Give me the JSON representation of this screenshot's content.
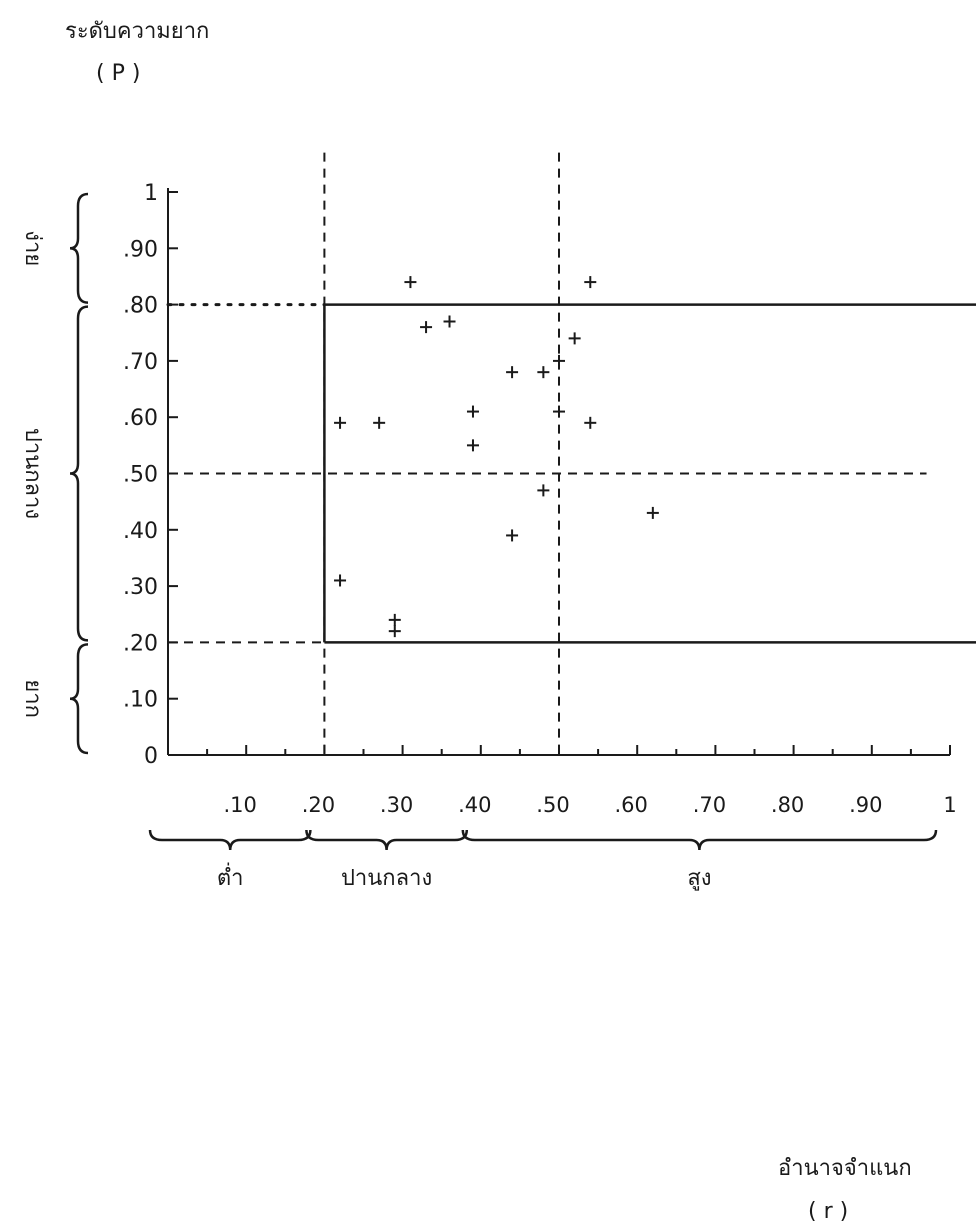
{
  "chart_data": {
    "type": "scatter",
    "title": "",
    "ylabel": "ระดับความยาก",
    "ylabel_symbol": "( P )",
    "xlabel": "อำนาจจำแนก",
    "xlabel_symbol": "( r )",
    "xlim": [
      0,
      1
    ],
    "ylim": [
      0,
      1
    ],
    "grid": false,
    "y_ticks": [
      "0",
      ".10",
      ".20",
      ".30",
      ".40",
      ".50",
      ".60",
      ".70",
      ".80",
      ".90",
      "1"
    ],
    "y_tick_values": [
      0,
      0.1,
      0.2,
      0.3,
      0.4,
      0.5,
      0.6,
      0.7,
      0.8,
      0.9,
      1
    ],
    "x_ticks": [
      ".10",
      ".20",
      ".30",
      ".40",
      ".50",
      ".60",
      ".70",
      ".80",
      ".90",
      "1"
    ],
    "x_tick_values": [
      0.1,
      0.2,
      0.3,
      0.4,
      0.5,
      0.6,
      0.7,
      0.8,
      0.9,
      1
    ],
    "y_bands": [
      {
        "label": "ง่าย",
        "range": [
          0.8,
          1.0
        ]
      },
      {
        "label": "ปานกลาง",
        "range": [
          0.2,
          0.8
        ]
      },
      {
        "label": "ยาก",
        "range": [
          0,
          0.2
        ]
      }
    ],
    "x_bands": [
      {
        "label": "ต่ำ",
        "range": [
          0,
          0.2
        ]
      },
      {
        "label": "ปานกลาง",
        "range": [
          0.2,
          0.4
        ]
      },
      {
        "label": "สูง",
        "range": [
          0.4,
          1.0
        ]
      }
    ],
    "reference_lines": [
      {
        "axis": "y",
        "value": 0.8,
        "style": "solid",
        "from_x": 0.2
      },
      {
        "axis": "y",
        "value": 0.2,
        "style": "solid",
        "from_x": 0.2
      },
      {
        "axis": "x",
        "value": 0.2,
        "style": "solid",
        "y_range": [
          0.2,
          0.8
        ]
      },
      {
        "axis": "x",
        "value": 0.2,
        "style": "dashed"
      },
      {
        "axis": "x",
        "value": 0.5,
        "style": "dashed"
      },
      {
        "axis": "y",
        "value": 0.5,
        "style": "dashed"
      }
    ],
    "marker": "+",
    "points": [
      {
        "x": 0.31,
        "y": 0.84
      },
      {
        "x": 0.54,
        "y": 0.84
      },
      {
        "x": 0.36,
        "y": 0.77
      },
      {
        "x": 0.33,
        "y": 0.76
      },
      {
        "x": 0.52,
        "y": 0.74
      },
      {
        "x": 0.44,
        "y": 0.68
      },
      {
        "x": 0.48,
        "y": 0.68
      },
      {
        "x": 0.5,
        "y": 0.7
      },
      {
        "x": 0.22,
        "y": 0.59
      },
      {
        "x": 0.27,
        "y": 0.59
      },
      {
        "x": 0.54,
        "y": 0.59
      },
      {
        "x": 0.39,
        "y": 0.61
      },
      {
        "x": 0.5,
        "y": 0.61
      },
      {
        "x": 0.39,
        "y": 0.55
      },
      {
        "x": 0.48,
        "y": 0.47
      },
      {
        "x": 0.62,
        "y": 0.43
      },
      {
        "x": 0.44,
        "y": 0.39
      },
      {
        "x": 0.22,
        "y": 0.31
      },
      {
        "x": 0.29,
        "y": 0.24
      },
      {
        "x": 0.29,
        "y": 0.22
      }
    ]
  }
}
